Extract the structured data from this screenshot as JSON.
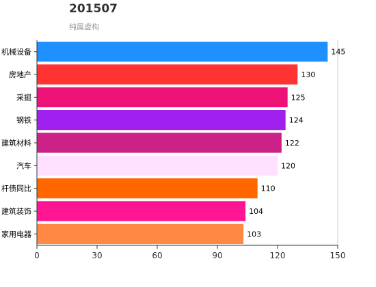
{
  "chart_data": {
    "type": "bar",
    "orientation": "horizontal",
    "title": "201507",
    "subtitle": "纯属虚构",
    "categories": [
      "机械设备",
      "房地产",
      "采掘",
      "钢铁",
      "建筑材料",
      "汽车",
      "杆债同比",
      "建筑装饰",
      "家用电器"
    ],
    "values": [
      145,
      130,
      125,
      124,
      122,
      120,
      110,
      104,
      103
    ],
    "colors": [
      "#1e90ff",
      "#ff3333",
      "#ee1177",
      "#a020f0",
      "#cc2288",
      "#ffe0ff",
      "#ff6600",
      "#ff1493",
      "#ff8844"
    ],
    "xlim": [
      0,
      150
    ],
    "xticks": [
      0,
      30,
      60,
      90,
      120,
      150
    ],
    "grid": false,
    "legend": "none"
  }
}
